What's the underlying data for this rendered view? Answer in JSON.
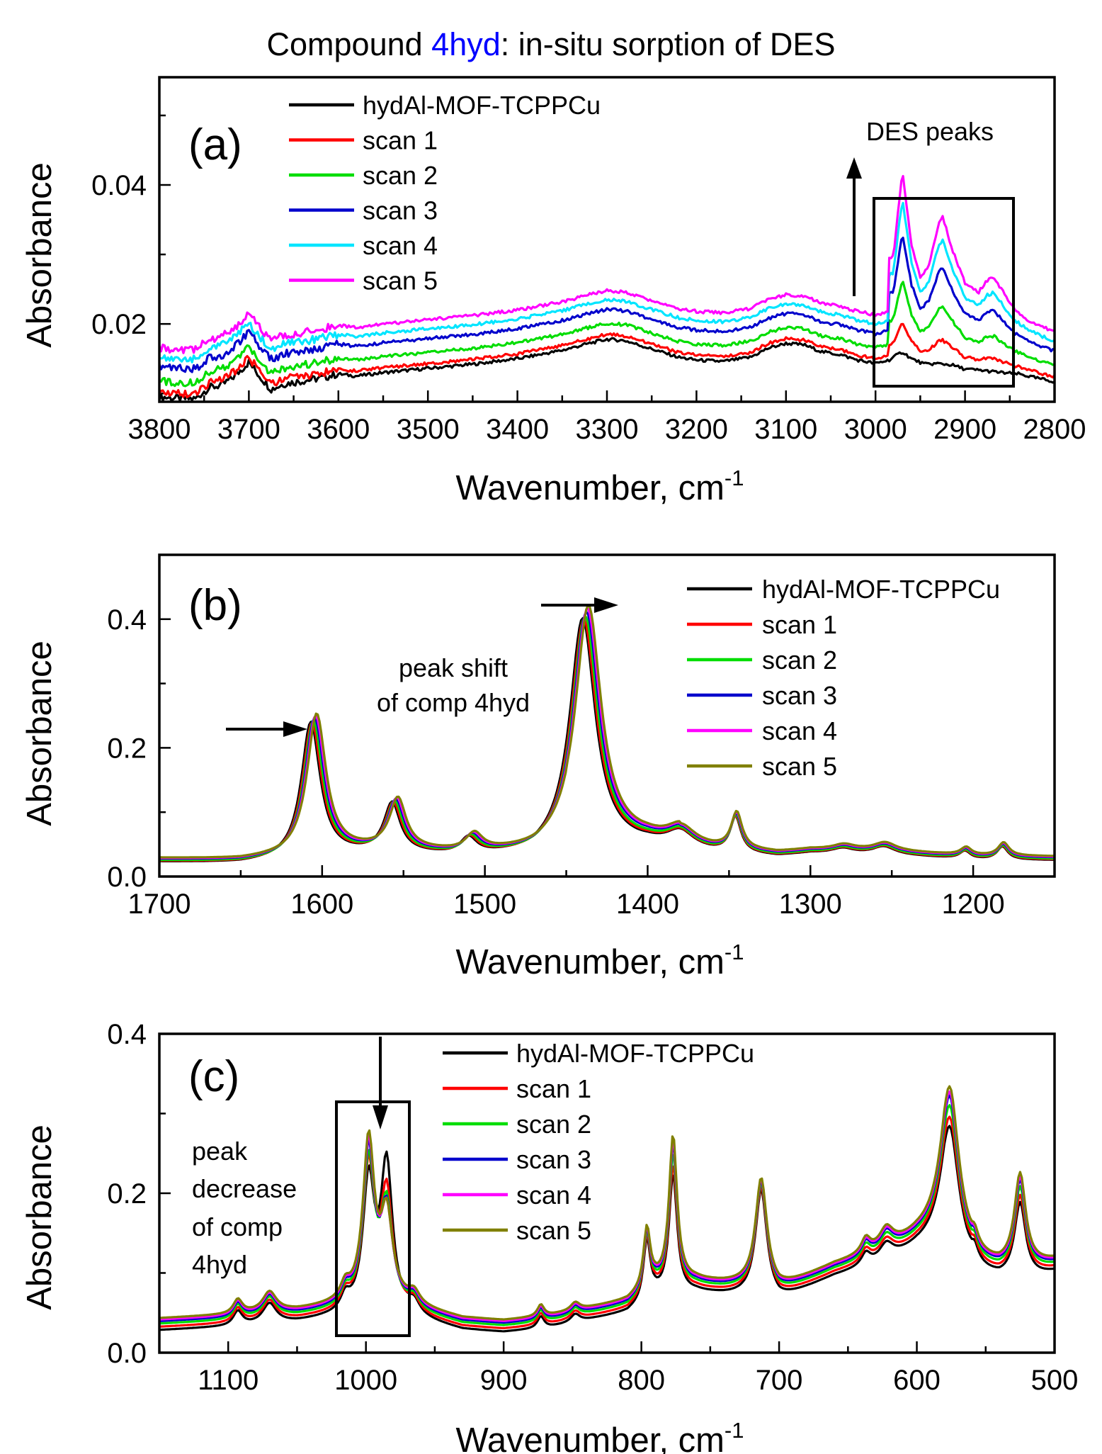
{
  "title": {
    "prefix": "Compound ",
    "highlight": "4hyd",
    "suffix": ": in-situ sorption of DES",
    "highlight_color": "#0000ff"
  },
  "chart_data": [
    {
      "type": "line",
      "panel_label": "(a)",
      "xlabel": "Wavenumber, cm",
      "xlabel_sup": "-1",
      "ylabel": "Absorbance",
      "xlim": [
        3800,
        2800
      ],
      "ylim": [
        0.0088,
        0.0555
      ],
      "xticks": [
        3800,
        3700,
        3600,
        3500,
        3400,
        3300,
        3200,
        3100,
        3000,
        2900,
        2800
      ],
      "yticks": [
        0.02,
        0.04
      ],
      "ytick_labels": [
        "0.02",
        "0.04"
      ],
      "legend": [
        "hydAl-MOF-TCPPCu",
        "scan 1",
        "scan 2",
        "scan 3",
        "scan 4",
        "scan 5"
      ],
      "colors": [
        "#000000",
        "#ff0000",
        "#00dd00",
        "#0000cc",
        "#00e5ff",
        "#ff00ff"
      ],
      "annotation": "DES peaks",
      "baseline": [
        [
          3800,
          0.0095
        ],
        [
          3780,
          0.0093
        ],
        [
          3760,
          0.0092
        ],
        [
          3745,
          0.0108
        ],
        [
          3730,
          0.0112
        ],
        [
          3715,
          0.0126
        ],
        [
          3700,
          0.0145
        ],
        [
          3690,
          0.0128
        ],
        [
          3675,
          0.0106
        ],
        [
          3660,
          0.0114
        ],
        [
          3640,
          0.0118
        ],
        [
          3620,
          0.0122
        ],
        [
          3600,
          0.0128
        ],
        [
          3580,
          0.0125
        ],
        [
          3550,
          0.013
        ],
        [
          3500,
          0.0136
        ],
        [
          3450,
          0.0142
        ],
        [
          3400,
          0.015
        ],
        [
          3350,
          0.0162
        ],
        [
          3320,
          0.0172
        ],
        [
          3300,
          0.0178
        ],
        [
          3280,
          0.0176
        ],
        [
          3250,
          0.0164
        ],
        [
          3220,
          0.0152
        ],
        [
          3200,
          0.0148
        ],
        [
          3170,
          0.0146
        ],
        [
          3140,
          0.0152
        ],
        [
          3120,
          0.0165
        ],
        [
          3100,
          0.0172
        ],
        [
          3080,
          0.017
        ],
        [
          3060,
          0.016
        ],
        [
          3040,
          0.0156
        ],
        [
          3020,
          0.0148
        ],
        [
          3000,
          0.0143
        ],
        [
          2985,
          0.0148
        ],
        [
          2970,
          0.016
        ],
        [
          2960,
          0.015
        ],
        [
          2945,
          0.0142
        ],
        [
          2930,
          0.0143
        ],
        [
          2915,
          0.0141
        ],
        [
          2900,
          0.0135
        ],
        [
          2880,
          0.0133
        ],
        [
          2860,
          0.013
        ],
        [
          2840,
          0.0128
        ],
        [
          2820,
          0.0122
        ],
        [
          2800,
          0.0117
        ]
      ],
      "des": [
        [
          2980,
          0.4
        ],
        [
          2970,
          1.0
        ],
        [
          2960,
          0.5
        ],
        [
          2950,
          0.28
        ],
        [
          2940,
          0.38
        ],
        [
          2930,
          0.68
        ],
        [
          2925,
          0.75
        ],
        [
          2915,
          0.52
        ],
        [
          2900,
          0.28
        ],
        [
          2885,
          0.22
        ],
        [
          2875,
          0.32
        ],
        [
          2868,
          0.35
        ],
        [
          2855,
          0.22
        ],
        [
          2845,
          0.12
        ],
        [
          2830,
          0.06
        ],
        [
          2815,
          0.03
        ],
        [
          2800,
          0.01
        ]
      ],
      "offsets": [
        0,
        0.0007,
        0.0023,
        0.0043,
        0.0057,
        0.007
      ],
      "des_amps": [
        0,
        0.0036,
        0.0081,
        0.0128,
        0.0163,
        0.019
      ]
    },
    {
      "type": "line",
      "panel_label": "(b)",
      "xlabel": "Wavenumber, cm",
      "xlabel_sup": "-1",
      "ylabel": "Absorbance",
      "xlim": [
        1700,
        1150
      ],
      "ylim": [
        0.0,
        0.5
      ],
      "xticks": [
        1700,
        1600,
        1500,
        1400,
        1300,
        1200
      ],
      "yticks": [
        0.0,
        0.2,
        0.4
      ],
      "ytick_labels": [
        "0.0",
        "0.2",
        "0.4"
      ],
      "legend": [
        "hydAl-MOF-TCPPCu",
        "scan 1",
        "scan 2",
        "scan 3",
        "scan 4",
        "scan 5"
      ],
      "colors": [
        "#000000",
        "#ff0000",
        "#00dd00",
        "#0000cc",
        "#ff00ff",
        "#808000"
      ],
      "annotation": [
        "peak shift",
        "of comp 4hyd"
      ],
      "peaks": [
        [
          1607,
          0.21,
          7
        ],
        [
          1557,
          0.075,
          6
        ],
        [
          1510,
          0.025,
          6
        ],
        [
          1440,
          0.36,
          9.5
        ],
        [
          1380,
          0.025,
          10
        ],
        [
          1346,
          0.055,
          4
        ],
        [
          1280,
          0.008,
          8
        ],
        [
          1255,
          0.012,
          8
        ],
        [
          1205,
          0.012,
          4
        ],
        [
          1182,
          0.02,
          4
        ]
      ],
      "continuum": [
        [
          1700,
          0.022
        ],
        [
          1650,
          0.02
        ],
        [
          1620,
          0.024
        ],
        [
          1600,
          0.03
        ],
        [
          1560,
          0.035
        ],
        [
          1520,
          0.03
        ],
        [
          1470,
          0.03
        ],
        [
          1440,
          0.04
        ],
        [
          1400,
          0.045
        ],
        [
          1360,
          0.035
        ],
        [
          1320,
          0.03
        ],
        [
          1300,
          0.035
        ],
        [
          1250,
          0.033
        ],
        [
          1200,
          0.026
        ],
        [
          1150,
          0.025
        ]
      ],
      "shifts": [
        0,
        0.8,
        1.6,
        2.4,
        3.0,
        3.6
      ],
      "gains": [
        1.0,
        0.99,
        1.0,
        1.01,
        1.02,
        1.03
      ],
      "bumps": [
        0,
        0.001,
        0.002,
        0.004,
        0.005,
        0.006
      ]
    },
    {
      "type": "line",
      "panel_label": "(c)",
      "xlabel": "Wavenumber, cm",
      "xlabel_sup": "-1",
      "ylabel": "Absorbance",
      "xlim": [
        1150,
        500
      ],
      "ylim": [
        0.0,
        0.4
      ],
      "xticks": [
        1100,
        1000,
        900,
        800,
        700,
        600,
        500
      ],
      "yticks": [
        0.0,
        0.2,
        0.4
      ],
      "ytick_labels": [
        "0.0",
        "0.2",
        "0.4"
      ],
      "legend": [
        "hydAl-MOF-TCPPCu",
        "scan 1",
        "scan 2",
        "scan 3",
        "scan 4",
        "scan 5"
      ],
      "colors": [
        "#000000",
        "#ff0000",
        "#00dd00",
        "#0000cc",
        "#ff00ff",
        "#808000"
      ],
      "annotation": [
        "peak",
        "decrease",
        "of comp",
        "4hyd"
      ],
      "continuum": [
        [
          1150,
          0.028
        ],
        [
          1100,
          0.032
        ],
        [
          1050,
          0.038
        ],
        [
          1020,
          0.045
        ],
        [
          1000,
          0.05
        ],
        [
          980,
          0.05
        ],
        [
          960,
          0.04
        ],
        [
          930,
          0.028
        ],
        [
          900,
          0.025
        ],
        [
          870,
          0.03
        ],
        [
          840,
          0.04
        ],
        [
          810,
          0.05
        ],
        [
          790,
          0.07
        ],
        [
          760,
          0.075
        ],
        [
          740,
          0.072
        ],
        [
          720,
          0.07
        ],
        [
          700,
          0.065
        ],
        [
          680,
          0.08
        ],
        [
          660,
          0.095
        ],
        [
          640,
          0.105
        ],
        [
          620,
          0.115
        ],
        [
          600,
          0.13
        ],
        [
          580,
          0.14
        ],
        [
          560,
          0.1
        ],
        [
          540,
          0.09
        ],
        [
          520,
          0.09
        ],
        [
          500,
          0.1
        ]
      ],
      "peaks": [
        [
          1093,
          0.018,
          4
        ],
        [
          1070,
          0.025,
          6
        ],
        [
          1015,
          0.018,
          4
        ],
        [
          998,
          0.16,
          5
        ],
        [
          985,
          0.18,
          5
        ],
        [
          965,
          0.015,
          5
        ],
        [
          873,
          0.015,
          3
        ],
        [
          848,
          0.01,
          4
        ],
        [
          796,
          0.075,
          3
        ],
        [
          777,
          0.15,
          3.5
        ],
        [
          713,
          0.135,
          5
        ],
        [
          637,
          0.015,
          4
        ],
        [
          622,
          0.02,
          6
        ],
        [
          576,
          0.15,
          8
        ],
        [
          558,
          0.015,
          3
        ],
        [
          525,
          0.095,
          5
        ]
      ],
      "profiles": [
        {
          "d985": 0.0,
          "p998": 0.0,
          "pscale": 1.0,
          "lift": 0.0
        },
        {
          "d985": -0.04,
          "p998": 0.015,
          "pscale": 1.05,
          "lift": 0.004
        },
        {
          "d985": -0.06,
          "p998": 0.02,
          "pscale": 1.12,
          "lift": 0.008
        },
        {
          "d985": -0.07,
          "p998": 0.03,
          "pscale": 1.18,
          "lift": 0.011
        },
        {
          "d985": -0.075,
          "p998": 0.035,
          "pscale": 1.2,
          "lift": 0.013
        },
        {
          "d985": -0.078,
          "p998": 0.04,
          "pscale": 1.23,
          "lift": 0.015
        }
      ]
    }
  ]
}
